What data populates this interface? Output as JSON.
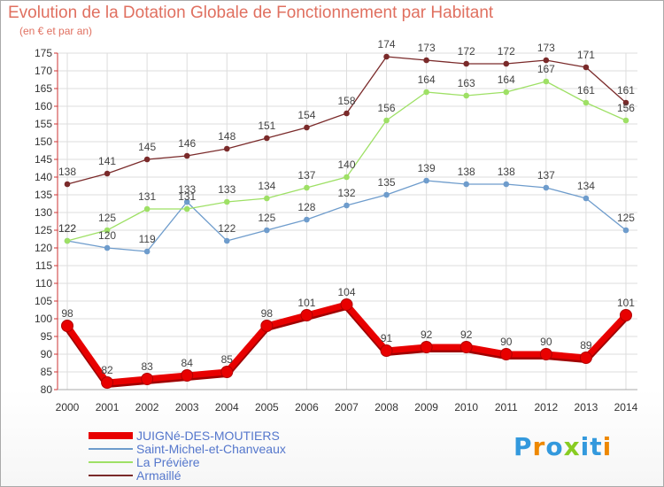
{
  "chart_data": {
    "type": "line",
    "title": "Evolution de la Dotation Globale de Fonctionnement par Habitant",
    "subtitle": "(en € et par an)",
    "xlabel": "",
    "ylabel": "",
    "ylim": [
      80,
      175
    ],
    "ytick_step": 5,
    "x": [
      "2000",
      "2001",
      "2002",
      "2003",
      "2004",
      "2005",
      "2006",
      "2007",
      "2008",
      "2009",
      "2010",
      "2011",
      "2012",
      "2013",
      "2014"
    ],
    "grid": true,
    "legend_position": "bottom-left",
    "series": [
      {
        "name": "JUIGNé-DES-MOUTIERS",
        "color": "#e80000",
        "values": [
          98,
          82,
          83,
          84,
          85,
          98,
          101,
          104,
          91,
          92,
          92,
          90,
          90,
          89,
          101
        ]
      },
      {
        "name": "Saint-Michel-et-Chanveaux",
        "color": "#6e9ccc",
        "values": [
          122,
          120,
          119,
          133,
          122,
          125,
          128,
          132,
          135,
          139,
          138,
          138,
          137,
          134,
          125
        ]
      },
      {
        "name": "La Prévière",
        "color": "#9ee065",
        "values": [
          122,
          125,
          131,
          131,
          133,
          134,
          137,
          140,
          156,
          164,
          163,
          164,
          167,
          161,
          156
        ]
      },
      {
        "name": "Armaillé",
        "color": "#7a2a2a",
        "values": [
          138,
          141,
          145,
          146,
          148,
          151,
          154,
          158,
          174,
          173,
          172,
          172,
          173,
          171,
          161
        ]
      }
    ]
  },
  "logo": {
    "text": "Proxiti",
    "colors": [
      "#3399dd",
      "#ee8800",
      "#3399dd",
      "#88cc22",
      "#3399dd",
      "#3399dd",
      "#ee8800"
    ]
  }
}
